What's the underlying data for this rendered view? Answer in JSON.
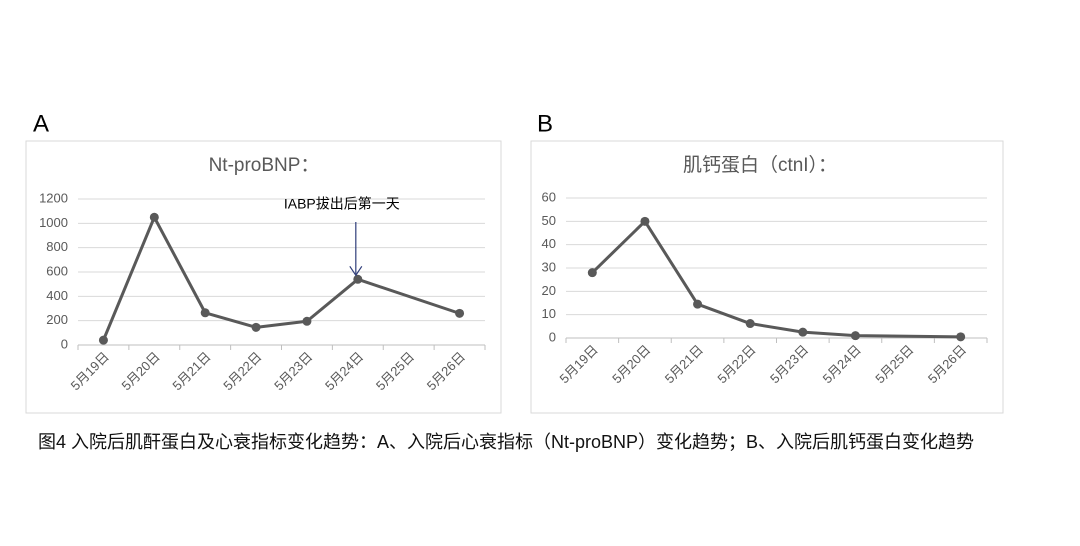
{
  "caption": "图4  入院后肌酐蛋白及心衰指标变化趋势：A、入院后心衰指标（Nt-proBNP）变化趋势；B、入院后肌钙蛋白变化趋势",
  "chart_data": [
    {
      "type": "line",
      "panel": "A",
      "title": "Nt-proBNP：",
      "xticks": [
        "5月19日",
        "5月20日",
        "5月21日",
        "5月22日",
        "5月23日",
        "5月24日",
        "5月25日",
        "5月26日"
      ],
      "x": [
        "5月19日",
        "5月20日",
        "5月21日",
        "5月22日",
        "5月23日",
        "5月24日",
        "5月26日"
      ],
      "values": [
        40,
        1050,
        265,
        145,
        195,
        540,
        260
      ],
      "color": "#595959",
      "ylim": [
        0,
        1200
      ],
      "yticks": [
        0,
        200,
        400,
        600,
        800,
        1000,
        1200
      ],
      "grid": true,
      "annotation": {
        "text": "IABP拔出后第一天",
        "x": "5月24日",
        "color": "#2f3d7a"
      }
    },
    {
      "type": "line",
      "panel": "B",
      "title": "肌钙蛋白（ctnI）：",
      "xticks": [
        "5月19日",
        "5月20日",
        "5月21日",
        "5月22日",
        "5月23日",
        "5月24日",
        "5月25日",
        "5月26日"
      ],
      "x": [
        "5月19日",
        "5月20日",
        "5月21日",
        "5月22日",
        "5月23日",
        "5月24日",
        "5月26日"
      ],
      "values": [
        28,
        50,
        14.5,
        6.2,
        2.5,
        1,
        0.5
      ],
      "color": "#595959",
      "ylim": [
        0,
        60
      ],
      "yticks": [
        0,
        10,
        20,
        30,
        40,
        50,
        60
      ],
      "grid": true
    }
  ]
}
